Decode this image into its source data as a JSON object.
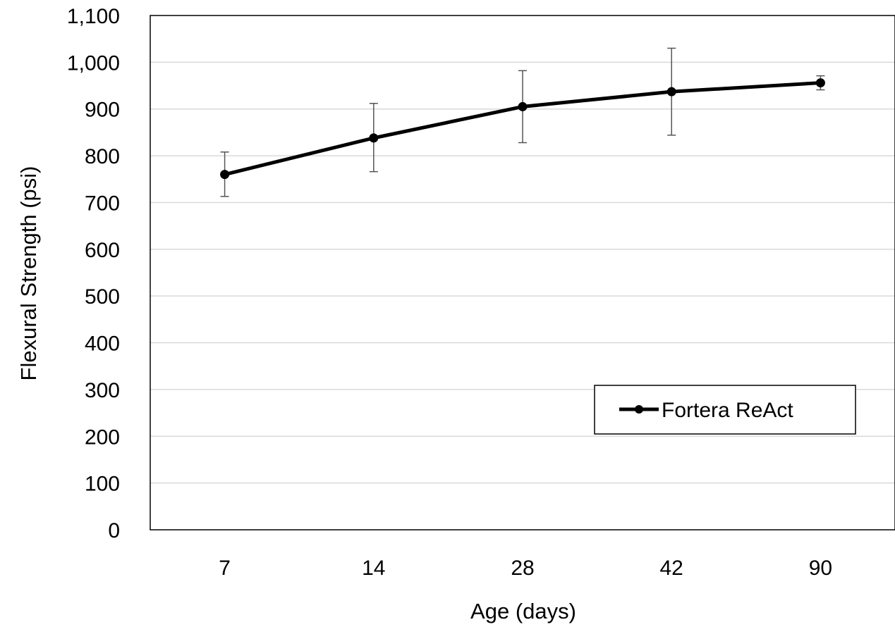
{
  "chart_data": {
    "type": "line",
    "title": "",
    "xlabel": "Age (days)",
    "ylabel": "Flexural Strength (psi)",
    "categories": [
      "7",
      "14",
      "28",
      "42",
      "90"
    ],
    "ylim": [
      0,
      1100
    ],
    "yticks": [
      "0",
      "100",
      "200",
      "300",
      "400",
      "500",
      "600",
      "700",
      "800",
      "900",
      "1,000",
      "1,100"
    ],
    "grid": "horizontal",
    "legend_position": "bottom-right",
    "series": [
      {
        "name": "Fortera ReAct",
        "values": [
          760,
          838,
          905,
          937,
          956
        ],
        "error_low": [
          713,
          766,
          828,
          844,
          941
        ],
        "error_high": [
          808,
          912,
          982,
          1030,
          971
        ],
        "color": "#000000"
      }
    ]
  }
}
